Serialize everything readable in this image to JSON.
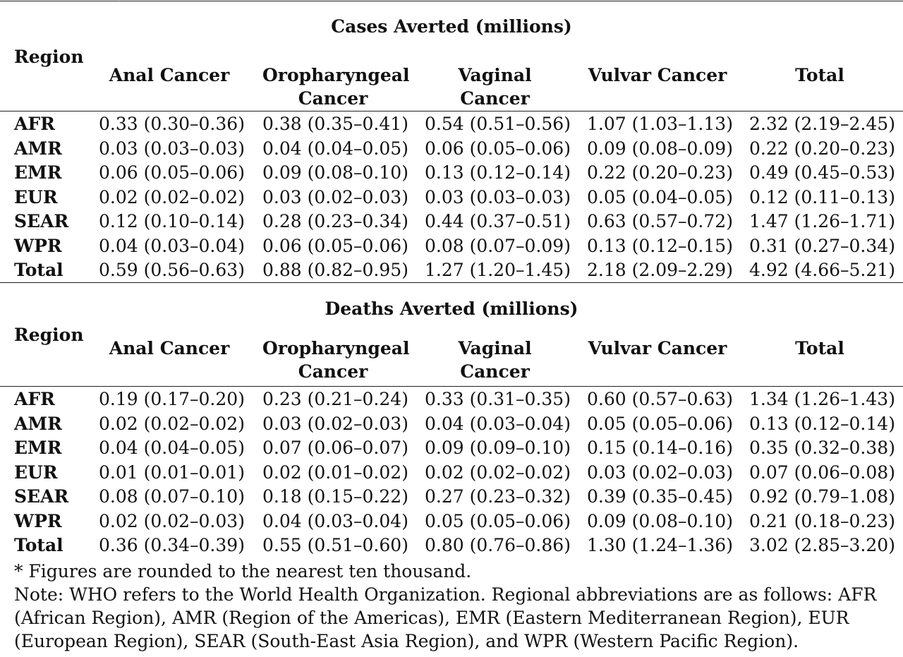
{
  "columns": [
    "Anal Cancer",
    "Oropharyngeal Cancer",
    "Vaginal Cancer",
    "Vulvar Cancer",
    "Total"
  ],
  "region_header": "Region",
  "sections": [
    {
      "title": "Cases Averted (millions)",
      "rows": [
        {
          "region": "AFR",
          "values": [
            "0.33 (0.30–0.36)",
            "0.38 (0.35–0.41)",
            "0.54 (0.51–0.56)",
            "1.07 (1.03–1.13)",
            "2.32 (2.19–2.45)"
          ]
        },
        {
          "region": "AMR",
          "values": [
            "0.03 (0.03–0.03)",
            "0.04 (0.04–0.05)",
            "0.06 (0.05–0.06)",
            "0.09 (0.08–0.09)",
            "0.22 (0.20–0.23)"
          ]
        },
        {
          "region": "EMR",
          "values": [
            "0.06 (0.05–0.06)",
            "0.09 (0.08–0.10)",
            "0.13 (0.12–0.14)",
            "0.22 (0.20–0.23)",
            "0.49 (0.45–0.53)"
          ]
        },
        {
          "region": "EUR",
          "values": [
            "0.02 (0.02–0.02)",
            "0.03 (0.02–0.03)",
            "0.03 (0.03–0.03)",
            "0.05 (0.04–0.05)",
            "0.12 (0.11–0.13)"
          ]
        },
        {
          "region": "SEAR",
          "values": [
            "0.12 (0.10–0.14)",
            "0.28 (0.23–0.34)",
            "0.44 (0.37–0.51)",
            "0.63 (0.57–0.72)",
            "1.47 (1.26–1.71)"
          ]
        },
        {
          "region": "WPR",
          "values": [
            "0.04 (0.03–0.04)",
            "0.06 (0.05–0.06)",
            "0.08 (0.07–0.09)",
            "0.13 (0.12–0.15)",
            "0.31 (0.27–0.34)"
          ]
        },
        {
          "region": "Total",
          "values": [
            "0.59 (0.56–0.63)",
            "0.88 (0.82–0.95)",
            "1.27 (1.20–1.45)",
            "2.18 (2.09–2.29)",
            "4.92 (4.66–5.21)"
          ]
        }
      ]
    },
    {
      "title": "Deaths Averted (millions)",
      "rows": [
        {
          "region": "AFR",
          "values": [
            "0.19 (0.17–0.20)",
            "0.23 (0.21–0.24)",
            "0.33 (0.31–0.35)",
            "0.60 (0.57–0.63)",
            "1.34 (1.26–1.43)"
          ]
        },
        {
          "region": "AMR",
          "values": [
            "0.02 (0.02–0.02)",
            "0.03 (0.02–0.03)",
            "0.04 (0.03–0.04)",
            "0.05 (0.05–0.06)",
            "0.13 (0.12–0.14)"
          ]
        },
        {
          "region": "EMR",
          "values": [
            "0.04 (0.04–0.05)",
            "0.07 (0.06–0.07)",
            "0.09 (0.09–0.10)",
            "0.15 (0.14–0.16)",
            "0.35 (0.32–0.38)"
          ]
        },
        {
          "region": "EUR",
          "values": [
            "0.01 (0.01–0.01)",
            "0.02 (0.01–0.02)",
            "0.02 (0.02–0.02)",
            "0.03 (0.02–0.03)",
            "0.07 (0.06–0.08)"
          ]
        },
        {
          "region": "SEAR",
          "values": [
            "0.08 (0.07–0.10)",
            "0.18 (0.15–0.22)",
            "0.27 (0.23–0.32)",
            "0.39 (0.35–0.45)",
            "0.92 (0.79–1.08)"
          ]
        },
        {
          "region": "WPR",
          "values": [
            "0.02 (0.02–0.03)",
            "0.04 (0.03–0.04)",
            "0.05 (0.05–0.06)",
            "0.09 (0.08–0.10)",
            "0.21 (0.18–0.23)"
          ]
        },
        {
          "region": "Total",
          "values": [
            "0.36 (0.34–0.39)",
            "0.55 (0.51–0.60)",
            "0.80 (0.76–0.86)",
            "1.30 (1.24–1.36)",
            "3.02 (2.85–3.20)"
          ]
        }
      ]
    }
  ],
  "footnote": "* Figures are rounded to the nearest ten thousand.",
  "note": "Note: WHO refers to the World Health Organization. Regional abbreviations are as follows: AFR (African Region), AMR (Region of the Americas), EMR (Eastern Mediterranean Region), EUR (European Region), SEAR (South-East Asia Region), and WPR (Western Pacific Region)."
}
